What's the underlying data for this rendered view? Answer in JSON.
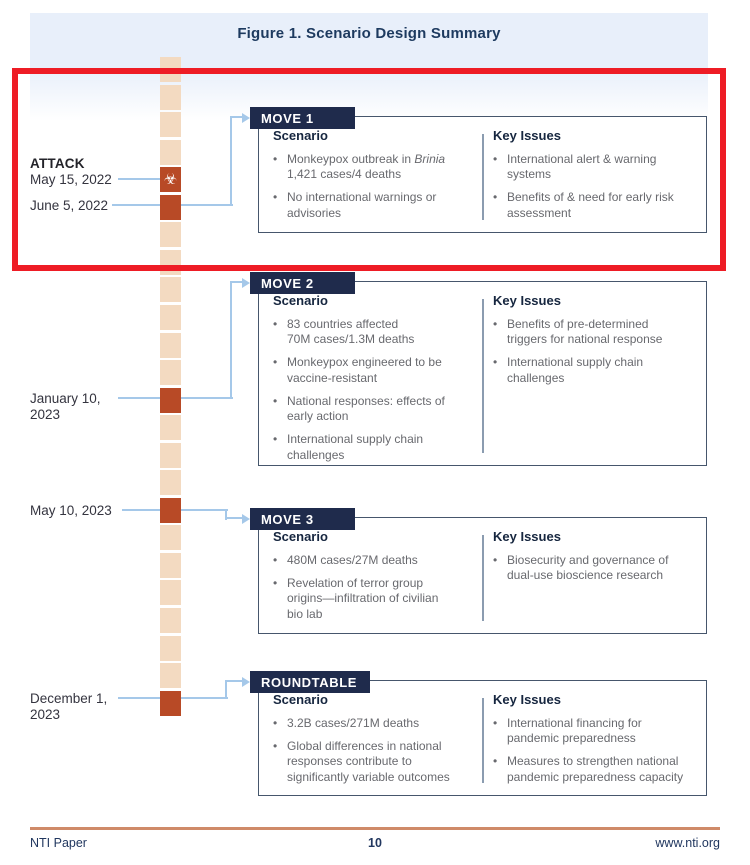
{
  "title": "Figure 1. Scenario Design Summary",
  "colors": {
    "navy": "#1f2b4c",
    "rust": "#b84a26",
    "tan": "#f3dac1",
    "line_blue": "#a5c8e9",
    "highlight_red": "#ee1c25",
    "footer_rule": "#cf8a68"
  },
  "icons": {
    "biohazard": "☣"
  },
  "timeline": {
    "attack_label": "ATTACK",
    "events": [
      {
        "date": "May 15, 2022",
        "has_attack_heading": true,
        "marker": "biohazard"
      },
      {
        "date": "June 5, 2022",
        "marker": "rust"
      },
      {
        "date": "January 10,\n2023",
        "marker": "rust"
      },
      {
        "date": "May 10, 2023",
        "marker": "rust"
      },
      {
        "date": "December 1,\n2023",
        "marker": "rust"
      }
    ]
  },
  "moves": [
    {
      "label": "MOVE 1",
      "scenario_heading": "Scenario",
      "key_issues_heading": "Key Issues",
      "scenario": [
        {
          "segments": [
            {
              "text": "Monkeypox outbreak in "
            },
            {
              "text": "Brinia",
              "italic": true
            },
            {
              "text": "\n1,421 cases/4 deaths"
            }
          ]
        },
        {
          "segments": [
            {
              "text": "No international warnings or\nadvisories"
            }
          ]
        }
      ],
      "key_issues": [
        {
          "segments": [
            {
              "text": "International alert & warning\nsystems"
            }
          ]
        },
        {
          "segments": [
            {
              "text": "Benefits of & need for early risk\nassessment"
            }
          ]
        }
      ]
    },
    {
      "label": "MOVE 2",
      "scenario_heading": "Scenario",
      "key_issues_heading": "Key Issues",
      "scenario": [
        {
          "segments": [
            {
              "text": "83 countries affected\n70M cases/1.3M deaths"
            }
          ]
        },
        {
          "segments": [
            {
              "text": "Monkeypox engineered to be\nvaccine-resistant"
            }
          ]
        },
        {
          "segments": [
            {
              "text": "National responses: effects of\nearly action"
            }
          ]
        },
        {
          "segments": [
            {
              "text": "International supply chain\nchallenges"
            }
          ]
        }
      ],
      "key_issues": [
        {
          "segments": [
            {
              "text": "Benefits of pre-determined\ntriggers for national response"
            }
          ]
        },
        {
          "segments": [
            {
              "text": "International supply chain\nchallenges"
            }
          ]
        }
      ]
    },
    {
      "label": "MOVE 3",
      "scenario_heading": "Scenario",
      "key_issues_heading": "Key Issues",
      "scenario": [
        {
          "segments": [
            {
              "text": "480M cases/27M deaths"
            }
          ]
        },
        {
          "segments": [
            {
              "text": "Revelation of terror group\norigins—infiltration of civilian\nbio lab"
            }
          ]
        }
      ],
      "key_issues": [
        {
          "segments": [
            {
              "text": "Biosecurity and governance of\ndual-use bioscience research"
            }
          ]
        }
      ]
    },
    {
      "label": "ROUNDTABLE",
      "scenario_heading": "Scenario",
      "key_issues_heading": "Key Issues",
      "scenario": [
        {
          "segments": [
            {
              "text": "3.2B cases/271M deaths"
            }
          ]
        },
        {
          "segments": [
            {
              "text": "Global differences in national\nresponses contribute to\nsignificantly variable outcomes"
            }
          ]
        }
      ],
      "key_issues": [
        {
          "segments": [
            {
              "text": "International financing for\npandemic preparedness"
            }
          ]
        },
        {
          "segments": [
            {
              "text": "Measures to strengthen national\npandemic preparedness capacity"
            }
          ]
        }
      ]
    }
  ],
  "footer": {
    "left": "NTI Paper",
    "page_number": "10",
    "right": "www.nti.org"
  }
}
